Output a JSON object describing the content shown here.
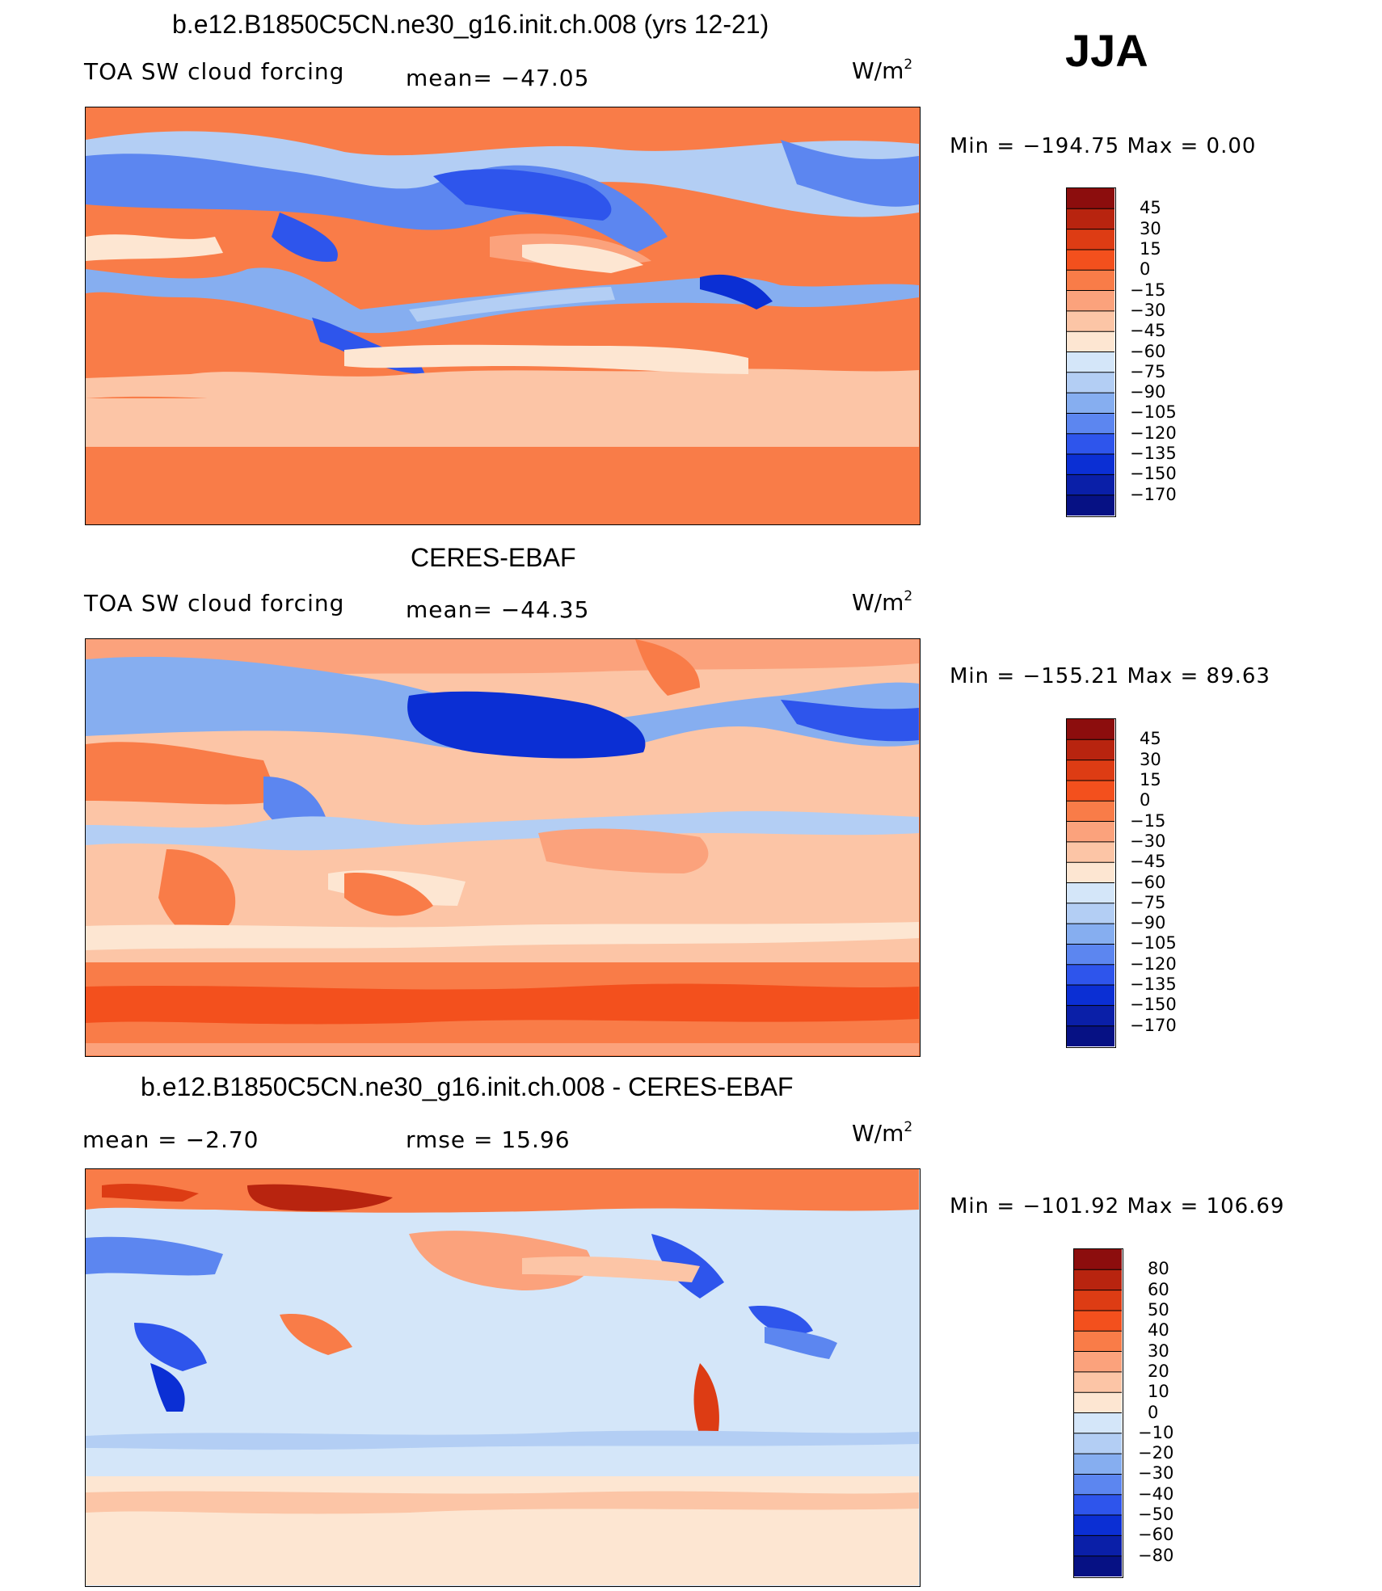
{
  "season": "JJA",
  "panels": [
    {
      "title": "b.e12.B1850C5CN.ne30_g16.init.ch.008 (yrs 12-21)",
      "left_label": "TOA SW cloud forcing",
      "stat1": "mean=  −47.05",
      "stat2": "",
      "units": "W/m",
      "units_sup": "2",
      "min_max": "Min  =  −194.75  Max  =     0.00",
      "colorbar": {
        "labels": [
          "45",
          "30",
          "15",
          "0",
          "−15",
          "−30",
          "−45",
          "−60",
          "−75",
          "−90",
          "−105",
          "−120",
          "−135",
          "−150",
          "−170"
        ],
        "colors": [
          "#8c0d0d",
          "#b8240f",
          "#dd3c14",
          "#f3501d",
          "#f97c48",
          "#fba27c",
          "#fcc5a6",
          "#fde6d2",
          "#d4e6f9",
          "#b3cef4",
          "#86aef0",
          "#5c86f0",
          "#2e55ec",
          "#0b2fd4",
          "#0a1fa8",
          "#061184"
        ]
      }
    },
    {
      "title": "CERES-EBAF",
      "left_label": "TOA SW cloud forcing",
      "stat1": "mean=  −44.35",
      "stat2": "",
      "units": "W/m",
      "units_sup": "2",
      "min_max": "Min  =  −155.21  Max  =    89.63",
      "colorbar": {
        "labels": [
          "45",
          "30",
          "15",
          "0",
          "−15",
          "−30",
          "−45",
          "−60",
          "−75",
          "−90",
          "−105",
          "−120",
          "−135",
          "−150",
          "−170"
        ],
        "colors": [
          "#8c0d0d",
          "#b8240f",
          "#dd3c14",
          "#f3501d",
          "#f97c48",
          "#fba27c",
          "#fcc5a6",
          "#fde6d2",
          "#d4e6f9",
          "#b3cef4",
          "#86aef0",
          "#5c86f0",
          "#2e55ec",
          "#0b2fd4",
          "#0a1fa8",
          "#061184"
        ]
      }
    },
    {
      "title": "b.e12.B1850C5CN.ne30_g16.init.ch.008 - CERES-EBAF",
      "left_label": "mean  =    −2.70",
      "stat1": "rmse  =    15.96",
      "stat2": "",
      "units": "W/m",
      "units_sup": "2",
      "min_max": "Min  =  −101.92  Max  =  106.69",
      "colorbar": {
        "labels": [
          "80",
          "60",
          "50",
          "40",
          "30",
          "20",
          "10",
          "0",
          "−10",
          "−20",
          "−30",
          "−40",
          "−50",
          "−60",
          "−80"
        ],
        "colors": [
          "#8c0d0d",
          "#b8240f",
          "#dd3c14",
          "#f3501d",
          "#f97c48",
          "#fba27c",
          "#fcc5a6",
          "#fde6d2",
          "#d4e6f9",
          "#b3cef4",
          "#86aef0",
          "#5c86f0",
          "#2e55ec",
          "#0b2fd4",
          "#0a1fa8",
          "#061184"
        ]
      }
    }
  ],
  "chart_data": [
    {
      "type": "heatmap",
      "title": "b.e12.B1850C5CN.ne30_g16.init.ch.008 (yrs 12-21)",
      "variable": "TOA SW cloud forcing",
      "units": "W/m2",
      "mean": -47.05,
      "min": -194.75,
      "max": 0.0,
      "levels": [
        45,
        30,
        15,
        0,
        -15,
        -30,
        -45,
        -60,
        -75,
        -90,
        -105,
        -120,
        -135,
        -150,
        -170
      ]
    },
    {
      "type": "heatmap",
      "title": "CERES-EBAF",
      "variable": "TOA SW cloud forcing",
      "units": "W/m2",
      "mean": -44.35,
      "min": -155.21,
      "max": 89.63,
      "levels": [
        45,
        30,
        15,
        0,
        -15,
        -30,
        -45,
        -60,
        -75,
        -90,
        -105,
        -120,
        -135,
        -150,
        -170
      ]
    },
    {
      "type": "heatmap",
      "title": "b.e12.B1850C5CN.ne30_g16.init.ch.008 - CERES-EBAF",
      "units": "W/m2",
      "mean": -2.7,
      "rmse": 15.96,
      "min": -101.92,
      "max": 106.69,
      "levels": [
        80,
        60,
        50,
        40,
        30,
        20,
        10,
        0,
        -10,
        -20,
        -30,
        -40,
        -50,
        -60,
        -80
      ]
    }
  ]
}
